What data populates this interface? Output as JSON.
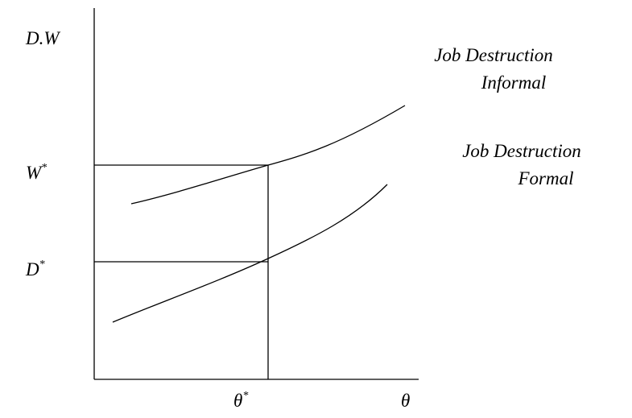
{
  "axes": {
    "y_label": "D.W",
    "x_label": "θ"
  },
  "points": {
    "w_star": {
      "base": "W",
      "sup": "*"
    },
    "d_star": {
      "base": "D",
      "sup": "*"
    },
    "theta_star": {
      "base": "θ",
      "sup": "*"
    }
  },
  "curves": {
    "informal": {
      "line1": "Job Destruction",
      "line2": "Informal"
    },
    "formal": {
      "line1": "Job Destruction",
      "line2": "Formal"
    }
  }
}
